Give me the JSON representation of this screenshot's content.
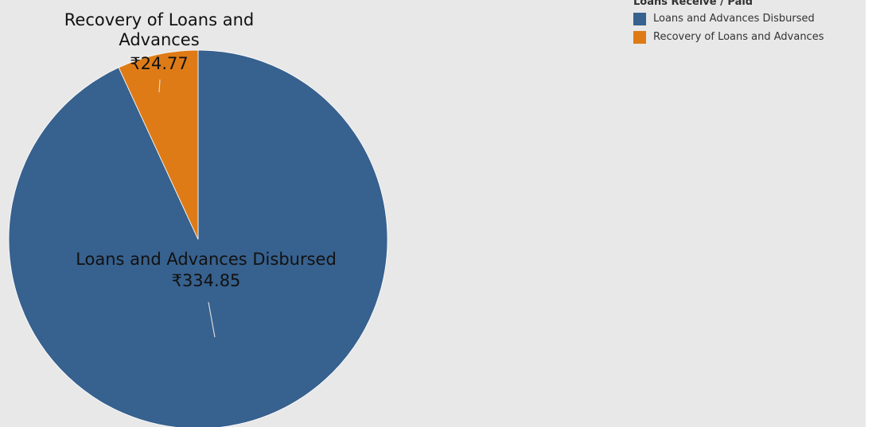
{
  "legend": {
    "title": "Loans Receive / Paid",
    "items": [
      {
        "label": "Loans and Advances Disbursed",
        "color": "#37618e"
      },
      {
        "label": "Recovery of Loans and Advances",
        "color": "#de7b17"
      }
    ]
  },
  "chart_data": {
    "type": "pie",
    "title": "",
    "legend_placement": "top-right",
    "series": [
      {
        "name": "Loans and Advances Disbursed",
        "value": 334.85,
        "value_label": "₹334.85",
        "label_lines": [
          "Loans and Advances Disbursed"
        ],
        "color": "#37618e"
      },
      {
        "name": "Recovery of Loans and Advances",
        "value": 24.77,
        "value_label": "₹24.77",
        "label_lines": [
          "Recovery of Loans and",
          "Advances"
        ],
        "color": "#de7b17"
      }
    ]
  }
}
